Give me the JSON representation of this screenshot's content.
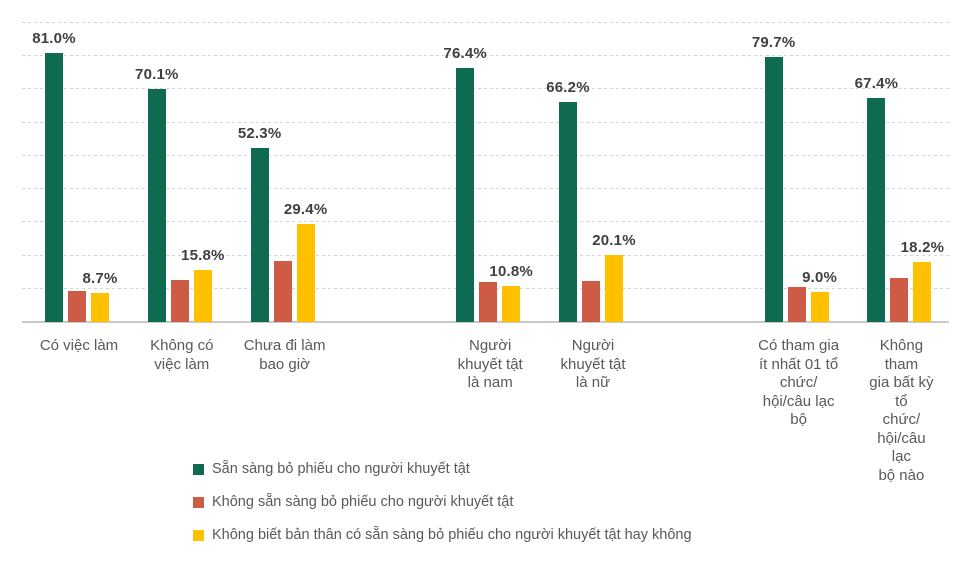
{
  "chart_data": {
    "type": "bar",
    "title": "",
    "xlabel": "",
    "ylabel": "",
    "ylim": [
      0,
      100
    ],
    "gridlines": {
      "interval": 10,
      "max": 90,
      "style": "dashed",
      "color": "#d4d4d4"
    },
    "axis_color": "#c9c9c9",
    "data_label_color": "#404040",
    "category_label_color": "#595959",
    "legend_position": "bottom-left",
    "cluster_breaks_after": [
      2,
      4
    ],
    "categories": [
      "Có việc làm",
      "Không có\nviệc làm",
      "Chưa đi làm\nbao giờ",
      "Người\nkhuyết tật\nlà nam",
      "Người\nkhuyết tật\nlà nữ",
      "Có tham gia\nít nhất 01 tổ\nchức/\nhội/câu lạc\nbộ",
      "Không tham\ngia bất kỳ tổ\nchức/\nhội/câu lạc\nbộ nào"
    ],
    "series": [
      {
        "name": "Sẵn sàng bỏ phiếu cho người khuyết tật",
        "color": "#0e6b52",
        "values": [
          81.0,
          70.1,
          52.3,
          76.4,
          66.2,
          79.7,
          67.4
        ],
        "labels": [
          "81.0%",
          "70.1%",
          "52.3%",
          "76.4%",
          "66.2%",
          "79.7%",
          "67.4%"
        ]
      },
      {
        "name": "Không sẵn sàng bỏ phiếu cho người khuyết tật",
        "color": "#ce5b45",
        "values": [
          9.2,
          12.7,
          18.4,
          12.0,
          12.3,
          10.5,
          13.4
        ],
        "values_estimated_from_gridlines": true,
        "labels": [
          "",
          "",
          "",
          "",
          "",
          "",
          ""
        ]
      },
      {
        "name": "Không biết bản thân có sẵn sàng bỏ phiếu cho người khuyết tật hay không",
        "color": "#ffc000",
        "values": [
          8.7,
          15.8,
          29.4,
          10.8,
          20.1,
          9.0,
          18.2
        ],
        "labels": [
          "8.7%",
          "15.8%",
          "29.4%",
          "10.8%",
          "20.1%",
          "9.0%",
          "18.2%"
        ]
      }
    ]
  }
}
